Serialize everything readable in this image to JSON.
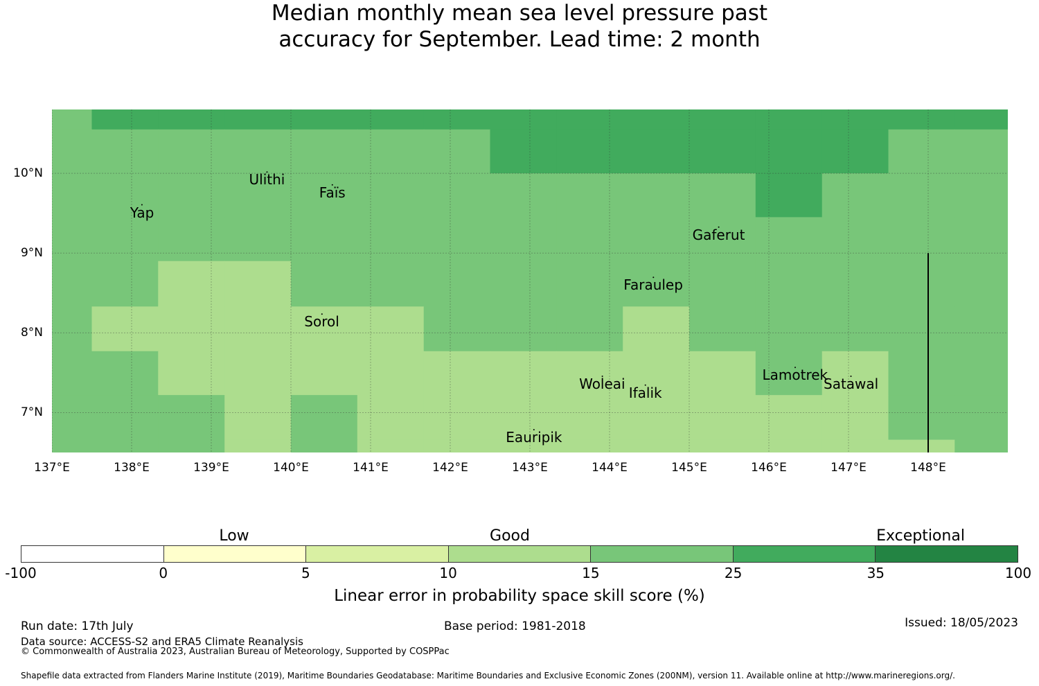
{
  "title": {
    "line1": "Median monthly mean sea level pressure past",
    "line2": "accuracy for September. Lead time: 2 month"
  },
  "map": {
    "lon_range": [
      137.0,
      149.0
    ],
    "lat_range": [
      6.5,
      10.8
    ],
    "lat_ticks": [
      {
        "value": 10,
        "label": "10°N"
      },
      {
        "value": 9,
        "label": "9°N"
      },
      {
        "value": 8,
        "label": "8°N"
      },
      {
        "value": 7,
        "label": "7°N"
      }
    ],
    "lon_ticks": [
      {
        "value": 137,
        "label": "137°E"
      },
      {
        "value": 138,
        "label": "138°E"
      },
      {
        "value": 139,
        "label": "139°E"
      },
      {
        "value": 140,
        "label": "140°E"
      },
      {
        "value": 141,
        "label": "141°E"
      },
      {
        "value": 142,
        "label": "142°E"
      },
      {
        "value": 143,
        "label": "143°E"
      },
      {
        "value": 144,
        "label": "144°E"
      },
      {
        "value": 145,
        "label": "145°E"
      },
      {
        "value": 146,
        "label": "146°E"
      },
      {
        "value": 147,
        "label": "147°E"
      },
      {
        "value": 148,
        "label": "148°E"
      }
    ],
    "grid": {
      "lon_edges": [
        137.0,
        137.5,
        138.333,
        139.167,
        140.0,
        140.833,
        141.667,
        142.5,
        143.333,
        144.167,
        145.0,
        145.833,
        146.667,
        147.5,
        148.333,
        149.0
      ],
      "lat_edges": [
        10.8,
        10.55,
        10.0,
        9.45,
        8.9,
        8.33,
        7.77,
        7.22,
        6.66,
        6.5
      ],
      "category_colors": {
        "10-15": "#addd8e",
        "15-25": "#78c679",
        "25-35": "#41ab5d"
      },
      "cells": [
        [
          "15-25",
          "25-35",
          "25-35",
          "25-35",
          "25-35",
          "25-35",
          "25-35",
          "25-35",
          "25-35",
          "25-35",
          "25-35",
          "25-35",
          "25-35",
          "25-35",
          "25-35"
        ],
        [
          "15-25",
          "15-25",
          "15-25",
          "15-25",
          "15-25",
          "15-25",
          "15-25",
          "25-35",
          "25-35",
          "25-35",
          "25-35",
          "25-35",
          "25-35",
          "15-25",
          "15-25"
        ],
        [
          "15-25",
          "15-25",
          "15-25",
          "15-25",
          "15-25",
          "15-25",
          "15-25",
          "15-25",
          "15-25",
          "15-25",
          "15-25",
          "25-35",
          "15-25",
          "15-25",
          "15-25"
        ],
        [
          "15-25",
          "15-25",
          "15-25",
          "15-25",
          "15-25",
          "15-25",
          "15-25",
          "15-25",
          "15-25",
          "15-25",
          "15-25",
          "15-25",
          "15-25",
          "15-25",
          "15-25"
        ],
        [
          "15-25",
          "15-25",
          "10-15",
          "10-15",
          "15-25",
          "15-25",
          "15-25",
          "15-25",
          "15-25",
          "15-25",
          "15-25",
          "15-25",
          "15-25",
          "15-25",
          "15-25"
        ],
        [
          "15-25",
          "10-15",
          "10-15",
          "10-15",
          "10-15",
          "10-15",
          "15-25",
          "15-25",
          "15-25",
          "10-15",
          "15-25",
          "15-25",
          "15-25",
          "15-25",
          "15-25"
        ],
        [
          "15-25",
          "15-25",
          "10-15",
          "10-15",
          "10-15",
          "10-15",
          "10-15",
          "10-15",
          "10-15",
          "10-15",
          "10-15",
          "15-25",
          "10-15",
          "15-25",
          "15-25"
        ],
        [
          "15-25",
          "15-25",
          "15-25",
          "10-15",
          "15-25",
          "10-15",
          "10-15",
          "10-15",
          "10-15",
          "10-15",
          "10-15",
          "10-15",
          "10-15",
          "15-25",
          "15-25"
        ],
        [
          "15-25",
          "15-25",
          "15-25",
          "10-15",
          "15-25",
          "10-15",
          "10-15",
          "10-15",
          "10-15",
          "10-15",
          "10-15",
          "10-15",
          "10-15",
          "10-15",
          "15-25"
        ]
      ]
    },
    "boundary_line": {
      "lon": 148.0,
      "lat_from": 6.5,
      "lat_to": 9.0
    },
    "places": [
      {
        "name": "Yap",
        "lon": 138.13,
        "lat": 9.51
      },
      {
        "name": "Ulithi",
        "lon": 139.7,
        "lat": 9.92
      },
      {
        "name": "Faïs",
        "lon": 140.52,
        "lat": 9.76
      },
      {
        "name": "Gaferut",
        "lon": 145.37,
        "lat": 9.23
      },
      {
        "name": "Faraulep",
        "lon": 144.55,
        "lat": 8.6
      },
      {
        "name": "Sorol",
        "lon": 140.39,
        "lat": 8.14
      },
      {
        "name": "Woleai",
        "lon": 143.91,
        "lat": 7.36
      },
      {
        "name": "Ifalik",
        "lon": 144.45,
        "lat": 7.25
      },
      {
        "name": "Lamotrek",
        "lon": 146.33,
        "lat": 7.47
      },
      {
        "name": "Satawal",
        "lon": 147.03,
        "lat": 7.36
      },
      {
        "name": "Eauripik",
        "lon": 143.05,
        "lat": 6.69
      }
    ]
  },
  "colorbar": {
    "segment_colors": [
      "#ffffff",
      "#ffffcc",
      "#d9f0a3",
      "#addd8e",
      "#78c679",
      "#41ab5d",
      "#238443"
    ],
    "tick_labels": [
      "-100",
      "0",
      "5",
      "10",
      "15",
      "25",
      "35",
      "100"
    ],
    "category_labels": [
      "Low",
      "Good",
      "Exceptional"
    ],
    "title": "Linear error in probability space skill score (%)"
  },
  "footer": {
    "run_date": "Run date: 17th July",
    "data_source": "Data source: ACCESS-S2 and ERA5 Climate Reanalysis",
    "copyright": "© Commonwealth of Australia 2023, Australian Bureau of Meteorology, Supported by COSPPac",
    "base_period": "Base period: 1981-2018",
    "issued": "Issued: 18/05/2023",
    "shapefile": "Shapefile data extracted from Flanders Marine Institute (2019), Maritime Boundaries Geodatabase: Maritime Boundaries and Exclusive Economic Zones (200NM), version 11. Available online at http://www.marineregions.org/."
  }
}
